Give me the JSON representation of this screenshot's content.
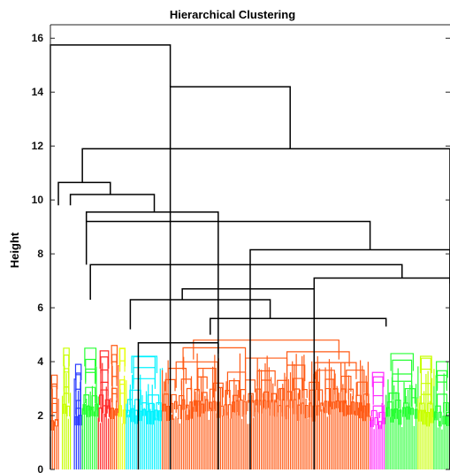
{
  "chart_data": {
    "type": "dendrogram",
    "title": "Hierarchical Clustering",
    "xlabel": "",
    "ylabel": "Height",
    "ylim": [
      0,
      16.5
    ],
    "yticks": [
      0,
      2,
      4,
      6,
      8,
      10,
      12,
      14,
      16
    ],
    "grid": false,
    "colors": {
      "merge": "#000000",
      "orange": "#ff5a14",
      "cyan": "#00f2ff",
      "green": "#26ff33",
      "lime": "#c8ff00",
      "blue": "#2a3bff",
      "red": "#ff2a2a",
      "magenta": "#ff29ff",
      "yellow_green": "#e8ff14"
    },
    "merges": [
      {
        "x1": 0.0,
        "x2": 0.3,
        "h": 15.75,
        "y1": 0,
        "y2": 14.2
      },
      {
        "x1": 0.3,
        "x2": 0.6,
        "h": 14.2,
        "y1": 0,
        "y2": 11.9
      },
      {
        "x1": 0.08,
        "x2": 1.0,
        "h": 11.9,
        "y1": 10.65,
        "y2": 0
      },
      {
        "x1": 0.02,
        "x2": 0.15,
        "h": 10.65,
        "y1": 9.8,
        "y2": 10.2
      },
      {
        "x1": 0.05,
        "x2": 0.26,
        "h": 10.2,
        "y1": 9.8,
        "y2": 9.55
      },
      {
        "x1": 0.09,
        "x2": 0.42,
        "h": 9.55,
        "y1": 9.2,
        "y2": 0
      },
      {
        "x1": 0.09,
        "x2": 0.8,
        "h": 9.2,
        "y1": 7.6,
        "y2": 8.15
      },
      {
        "x1": 0.5,
        "x2": 1.0,
        "h": 8.15,
        "y1": 0,
        "y2": 0
      },
      {
        "x1": 0.1,
        "x2": 0.88,
        "h": 7.6,
        "y1": 6.3,
        "y2": 7.1
      },
      {
        "x1": 0.66,
        "x2": 1.0,
        "h": 7.1,
        "y1": 6.7,
        "y2": 6.9
      },
      {
        "x1": 0.33,
        "x2": 0.66,
        "h": 6.7,
        "y1": 6.3,
        "y2": 0
      },
      {
        "x1": 0.2,
        "x2": 0.55,
        "h": 6.3,
        "y1": 5.2,
        "y2": 5.6
      },
      {
        "x1": 0.4,
        "x2": 0.84,
        "h": 5.6,
        "y1": 5.0,
        "y2": 5.3
      },
      {
        "x1": 0.22,
        "x2": 0.42,
        "h": 4.7,
        "y1": 0,
        "y2": 4.3
      }
    ],
    "clusters": [
      {
        "color": "orange",
        "x_start": 0.0,
        "x_end": 0.02,
        "height": 3.5
      },
      {
        "color": "lime",
        "x_start": 0.03,
        "x_end": 0.05,
        "height": 4.5
      },
      {
        "color": "blue",
        "x_start": 0.06,
        "x_end": 0.08,
        "height": 3.9
      },
      {
        "color": "green",
        "x_start": 0.08,
        "x_end": 0.12,
        "height": 4.5
      },
      {
        "color": "red",
        "x_start": 0.12,
        "x_end": 0.15,
        "height": 4.4
      },
      {
        "color": "orange",
        "x_start": 0.15,
        "x_end": 0.17,
        "height": 4.6
      },
      {
        "color": "yellow_green",
        "x_start": 0.17,
        "x_end": 0.19,
        "height": 4.5
      },
      {
        "color": "cyan",
        "x_start": 0.19,
        "x_end": 0.28,
        "height": 4.2
      },
      {
        "color": "orange",
        "x_start": 0.28,
        "x_end": 0.8,
        "height": 4.8
      },
      {
        "color": "magenta",
        "x_start": 0.8,
        "x_end": 0.84,
        "height": 3.6
      },
      {
        "color": "green",
        "x_start": 0.84,
        "x_end": 0.92,
        "height": 4.3
      },
      {
        "color": "lime",
        "x_start": 0.92,
        "x_end": 0.96,
        "height": 4.2
      },
      {
        "color": "green",
        "x_start": 0.96,
        "x_end": 1.0,
        "height": 4.0
      }
    ]
  }
}
